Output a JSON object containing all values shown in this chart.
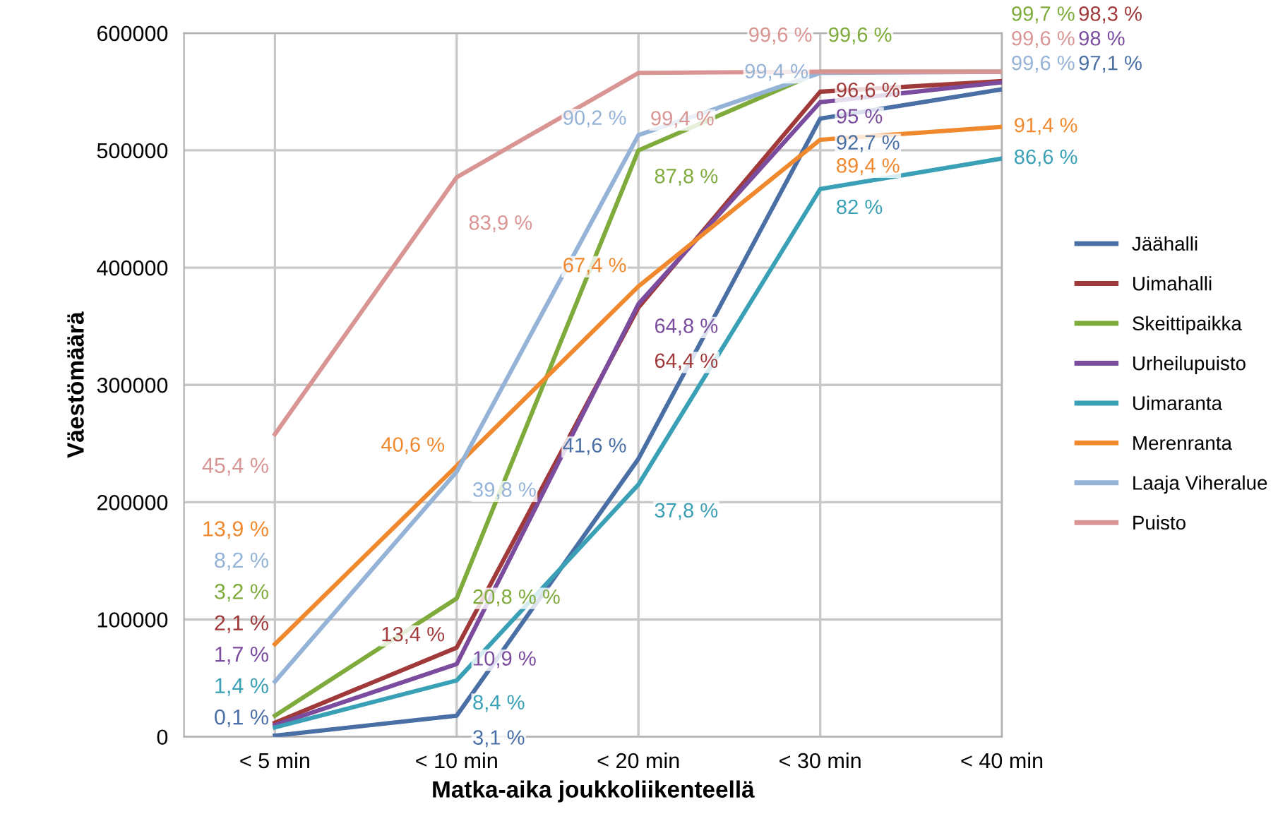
{
  "chart_data": {
    "type": "line",
    "xlabel": "Matka-aika joukkoliikenteellä",
    "ylabel": "Väestömäärä",
    "categories": [
      "< 5 min",
      "< 10 min",
      "< 20 min",
      "< 30 min",
      "< 40 min"
    ],
    "ylim": [
      0,
      600000
    ],
    "yticks": [
      0,
      100000,
      200000,
      300000,
      400000,
      500000,
      600000
    ],
    "grid": true,
    "legend": "right",
    "marker": "none",
    "line_style": "solid",
    "series": [
      {
        "name": "Jäähalli",
        "color": "#4a6fa5",
        "values": [
          1000,
          18000,
          237000,
          527000,
          552000
        ]
      },
      {
        "name": "Uimahalli",
        "color": "#a0393a",
        "values": [
          12000,
          76000,
          366000,
          550000,
          559000
        ]
      },
      {
        "name": "Skeittipaikka",
        "color": "#7fab3d",
        "values": [
          18000,
          118000,
          500000,
          567000,
          567000
        ]
      },
      {
        "name": "Urheilupuisto",
        "color": "#7b4c9e",
        "values": [
          10000,
          62000,
          369000,
          541000,
          558000
        ]
      },
      {
        "name": "Uimaranta",
        "color": "#3aa0b5",
        "values": [
          8000,
          48000,
          215000,
          467000,
          493000
        ]
      },
      {
        "name": "Merenranta",
        "color": "#f0882e",
        "values": [
          79000,
          231000,
          384000,
          509000,
          520000
        ]
      },
      {
        "name": "Laaja Viheralue",
        "color": "#95b3d7",
        "values": [
          47000,
          226000,
          513000,
          566000,
          567000
        ]
      },
      {
        "name": "Puisto",
        "color": "#d99594",
        "values": [
          258000,
          477000,
          566000,
          567000,
          567000
        ]
      }
    ],
    "annotations": [
      "0,1 %",
      {
        "text": "3,1 %",
        "x": "< 10 min",
        "y": 18000
      },
      {
        "text": "41,6 %",
        "x": "< 20 min",
        "y": 237000
      },
      {
        "text": "92,7 %",
        "x": "< 30 min",
        "y": 527000
      },
      "97,1 %",
      "2,1 %",
      {
        "text": "13,4 %",
        "x": "< 10 min",
        "y": 76000
      },
      {
        "text": "64,4 %",
        "x": "< 20 min",
        "y": 366000
      },
      {
        "text": "96,6 %",
        "x": "< 30 min",
        "y": 550000
      },
      "98,3 %",
      "3,2 %",
      {
        "text": "20,8 % %",
        "x": "< 10 min",
        "y": 118000
      },
      {
        "text": "87,8 %",
        "x": "< 20 min",
        "y": 500000
      },
      {
        "text": "99,6 %",
        "x": "< 30 min",
        "y": 567000
      },
      {
        "text": "99,7 %",
        "x": "< 40 min",
        "y": 567000
      },
      {
        "text": "1,7 %",
        "x": "< 5 min",
        "y": 10000
      },
      {
        "text": "10,9 %",
        "x": "< 10 min",
        "y": 62000
      },
      {
        "text": "64,8 %",
        "x": "< 20 min",
        "y": 369000
      },
      {
        "text": "95 %",
        "x": "< 30 min",
        "y": 541000
      },
      "98 %",
      {
        "text": "1,4 %",
        "x": "< 5 min",
        "y": 8000
      },
      {
        "text": "8,4 %",
        "x": "< 10 min",
        "y": 48000
      },
      {
        "text": "37,8 %",
        "x": "< 20 min",
        "y": 215000
      },
      {
        "text": "82 %",
        "x": "< 30 min",
        "y": 467000
      },
      {
        "text": "86,6 %",
        "x": "< 40 min",
        "y": 493000
      },
      "13,9 %",
      {
        "text": "40,6 %",
        "x": "< 10 min",
        "y": 231000
      },
      {
        "text": "67,4 %",
        "x": "< 20 min",
        "y": 384000
      },
      {
        "text": "89,4 %",
        "x": "< 30 min",
        "y": 509000
      },
      {
        "text": "91,4 %",
        "x": "< 40 min",
        "y": 520000
      },
      "8,2 %",
      {
        "text": "39,8 %",
        "x": "< 10 min",
        "y": 226000
      },
      {
        "text": "90,2 %",
        "x": "< 20 min",
        "y": 513000
      },
      {
        "text": "99,4 %",
        "x": "< 30 min",
        "y": 566000
      },
      {
        "text": "99,6 %",
        "x": "< 40 min",
        "y": 567000
      },
      {
        "text": "45,4 %",
        "x": "< 5 min",
        "y": 258000
      },
      {
        "text": "83,9 %",
        "x": "< 10 min",
        "y": 477000
      },
      {
        "text": "99,4 %",
        "x": "< 20 min",
        "y": 566000
      },
      {
        "text": "99,6 %",
        "x": "< 30 min",
        "y": 567000
      },
      {
        "text": "99,6 %",
        "x": "< 40 min",
        "y": 567000
      }
    ]
  }
}
